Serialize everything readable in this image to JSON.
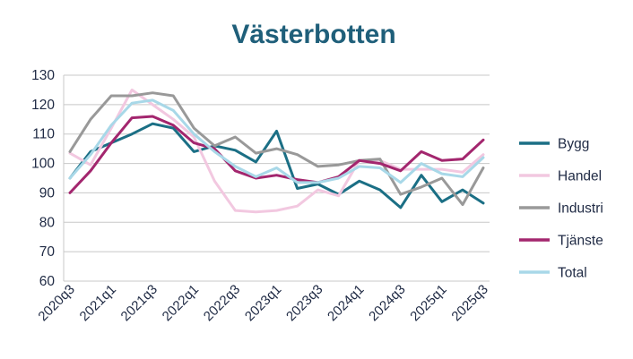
{
  "chart_data": {
    "type": "line",
    "title": "Västerbotten",
    "xlabel": "",
    "ylabel": "",
    "ylim": [
      60,
      130
    ],
    "yticks": [
      60,
      70,
      80,
      90,
      100,
      110,
      120,
      130
    ],
    "grid": true,
    "legend_position": "right",
    "x": [
      "2020q3",
      "2020q4",
      "2021q1",
      "2021q2",
      "2021q3",
      "2021q4",
      "2022q1",
      "2022q2",
      "2022q3",
      "2022q4",
      "2023q1",
      "2023q2",
      "2023q3",
      "2023q4",
      "2024q1",
      "2024q2",
      "2024q3",
      "2024q4",
      "2025q1",
      "2025q2",
      "2025q3"
    ],
    "xtick_labels": [
      "2020q3",
      "2021q1",
      "2021q3",
      "2022q1",
      "2022q3",
      "2023q1",
      "2023q3",
      "2024q1",
      "2024q3",
      "2025q1",
      "2025q3"
    ],
    "series": [
      {
        "name": "Bygg",
        "color": "#1b6f85",
        "values": [
          95,
          104,
          107,
          110,
          113.5,
          112,
          104,
          106,
          104.5,
          100.5,
          111,
          91.5,
          93,
          89.5,
          94,
          91,
          85,
          96,
          87,
          91,
          86.5
        ]
      },
      {
        "name": "Handel",
        "color": "#f2c8e0",
        "values": [
          103.5,
          99.5,
          112,
          125,
          120,
          115,
          109,
          94,
          84,
          83.5,
          84,
          85.5,
          91,
          89,
          101,
          101,
          98,
          98,
          98,
          97,
          103
        ]
      },
      {
        "name": "Industri",
        "color": "#999999",
        "values": [
          104,
          115,
          123,
          123,
          124,
          123,
          112,
          106,
          109,
          103.5,
          105,
          103,
          99,
          99.5,
          101,
          101.5,
          89.5,
          92,
          95,
          86,
          98.5
        ]
      },
      {
        "name": "Tjänste",
        "color": "#a3266e",
        "values": [
          90,
          97.5,
          107,
          115.5,
          116,
          113,
          107,
          105,
          97.5,
          95,
          96,
          94.5,
          93.5,
          95.5,
          101,
          100,
          97.5,
          104,
          101,
          101.5,
          108
        ]
      },
      {
        "name": "Total",
        "color": "#a8d8e8",
        "values": [
          95,
          103,
          113,
          120.5,
          121.5,
          118,
          110,
          104,
          99,
          95.5,
          98.5,
          93.5,
          93.5,
          95,
          99,
          98.5,
          93.5,
          100,
          96.5,
          95.5,
          102
        ]
      }
    ]
  }
}
